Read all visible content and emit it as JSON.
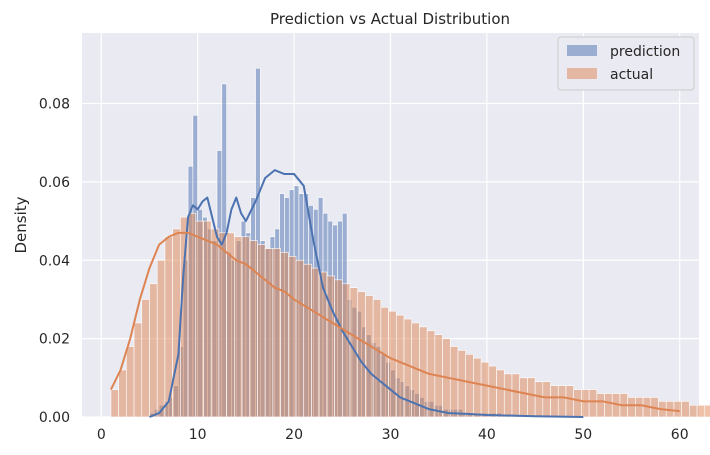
{
  "chart_data": {
    "type": "histogram",
    "title": "Prediction vs Actual Distribution",
    "xlabel": "",
    "ylabel": "Density",
    "xlim": [
      -2,
      62
    ],
    "ylim": [
      0,
      0.098
    ],
    "xticks": [
      0,
      10,
      20,
      30,
      40,
      50,
      60
    ],
    "xtick_labels": [
      "0",
      "10",
      "20",
      "30",
      "40",
      "50",
      "60"
    ],
    "yticks": [
      0.0,
      0.02,
      0.04,
      0.06,
      0.08
    ],
    "ytick_labels": [
      "0.00",
      "0.02",
      "0.04",
      "0.06",
      "0.08"
    ],
    "grid": true,
    "legend_position": "top-right",
    "series": [
      {
        "name": "prediction",
        "color": "#4c72b0",
        "bin_start": 5.0,
        "bin_width": 0.5,
        "density": [
          0.001,
          0.002,
          0.003,
          0.004,
          0.005,
          0.008,
          0.018,
          0.04,
          0.064,
          0.077,
          0.053,
          0.051,
          0.048,
          0.045,
          0.068,
          0.085,
          0.042,
          0.04,
          0.045,
          0.05,
          0.047,
          0.056,
          0.089,
          0.045,
          0.043,
          0.046,
          0.048,
          0.057,
          0.056,
          0.058,
          0.059,
          0.057,
          0.057,
          0.054,
          0.053,
          0.056,
          0.052,
          0.05,
          0.049,
          0.05,
          0.052,
          0.03,
          0.028,
          0.027,
          0.023,
          0.021,
          0.019,
          0.018,
          0.016,
          0.014,
          0.012,
          0.01,
          0.009,
          0.008,
          0.007,
          0.006,
          0.005,
          0.004,
          0.004,
          0.003,
          0.003,
          0.002,
          0.002,
          0.002,
          0.002,
          0.001,
          0.001,
          0.001,
          0.001,
          0.001,
          0.001,
          0.001,
          0.001,
          0.0005,
          0.0005,
          0.0005,
          0.0005,
          0.0005,
          0.0005,
          0.0005
        ]
      },
      {
        "name": "actual",
        "color": "#dd8452",
        "bin_start": 1.0,
        "bin_width": 0.8,
        "density": [
          0.007,
          0.012,
          0.018,
          0.024,
          0.03,
          0.034,
          0.04,
          0.046,
          0.048,
          0.051,
          0.052,
          0.05,
          0.05,
          0.048,
          0.047,
          0.047,
          0.046,
          0.046,
          0.045,
          0.044,
          0.043,
          0.043,
          0.042,
          0.041,
          0.04,
          0.039,
          0.038,
          0.037,
          0.036,
          0.035,
          0.034,
          0.033,
          0.032,
          0.031,
          0.03,
          0.028,
          0.027,
          0.026,
          0.025,
          0.024,
          0.023,
          0.022,
          0.021,
          0.02,
          0.018,
          0.017,
          0.016,
          0.015,
          0.014,
          0.013,
          0.012,
          0.011,
          0.011,
          0.01,
          0.01,
          0.009,
          0.009,
          0.008,
          0.008,
          0.008,
          0.007,
          0.007,
          0.007,
          0.006,
          0.006,
          0.006,
          0.006,
          0.005,
          0.005,
          0.005,
          0.005,
          0.004,
          0.004,
          0.004,
          0.004,
          0.003,
          0.003,
          0.003,
          0.003,
          0.002
        ]
      }
    ],
    "kde": [
      {
        "name": "prediction",
        "color": "#4c72b0",
        "x": [
          5,
          6,
          7,
          8,
          8.5,
          9,
          9.5,
          10,
          10.5,
          11,
          11.5,
          12,
          12.5,
          13,
          13.5,
          14,
          14.5,
          15,
          16,
          17,
          18,
          19,
          20,
          21,
          22,
          23,
          24,
          25,
          26,
          27,
          28,
          29,
          30,
          31,
          32,
          34,
          36,
          38,
          40,
          45,
          50
        ],
        "y": [
          0.0,
          0.001,
          0.004,
          0.016,
          0.036,
          0.051,
          0.054,
          0.053,
          0.055,
          0.056,
          0.051,
          0.046,
          0.044,
          0.047,
          0.053,
          0.056,
          0.052,
          0.05,
          0.055,
          0.061,
          0.063,
          0.062,
          0.062,
          0.059,
          0.045,
          0.033,
          0.027,
          0.022,
          0.018,
          0.014,
          0.011,
          0.009,
          0.007,
          0.005,
          0.004,
          0.002,
          0.001,
          0.0008,
          0.0005,
          0.0002,
          0.0
        ]
      },
      {
        "name": "actual",
        "color": "#dd8452",
        "x": [
          1,
          2,
          3,
          4,
          5,
          6,
          7,
          8,
          9,
          10,
          11,
          12,
          13,
          14,
          15,
          16,
          17,
          18,
          19,
          20,
          22,
          24,
          26,
          28,
          30,
          32,
          34,
          36,
          38,
          40,
          42,
          44,
          46,
          48,
          50,
          52,
          54,
          56,
          58,
          60
        ],
        "y": [
          0.007,
          0.012,
          0.02,
          0.03,
          0.038,
          0.044,
          0.046,
          0.047,
          0.047,
          0.046,
          0.045,
          0.044,
          0.042,
          0.04,
          0.039,
          0.037,
          0.035,
          0.033,
          0.032,
          0.03,
          0.027,
          0.024,
          0.021,
          0.018,
          0.015,
          0.013,
          0.011,
          0.01,
          0.009,
          0.008,
          0.007,
          0.006,
          0.005,
          0.005,
          0.004,
          0.004,
          0.003,
          0.003,
          0.002,
          0.0015
        ]
      }
    ]
  }
}
